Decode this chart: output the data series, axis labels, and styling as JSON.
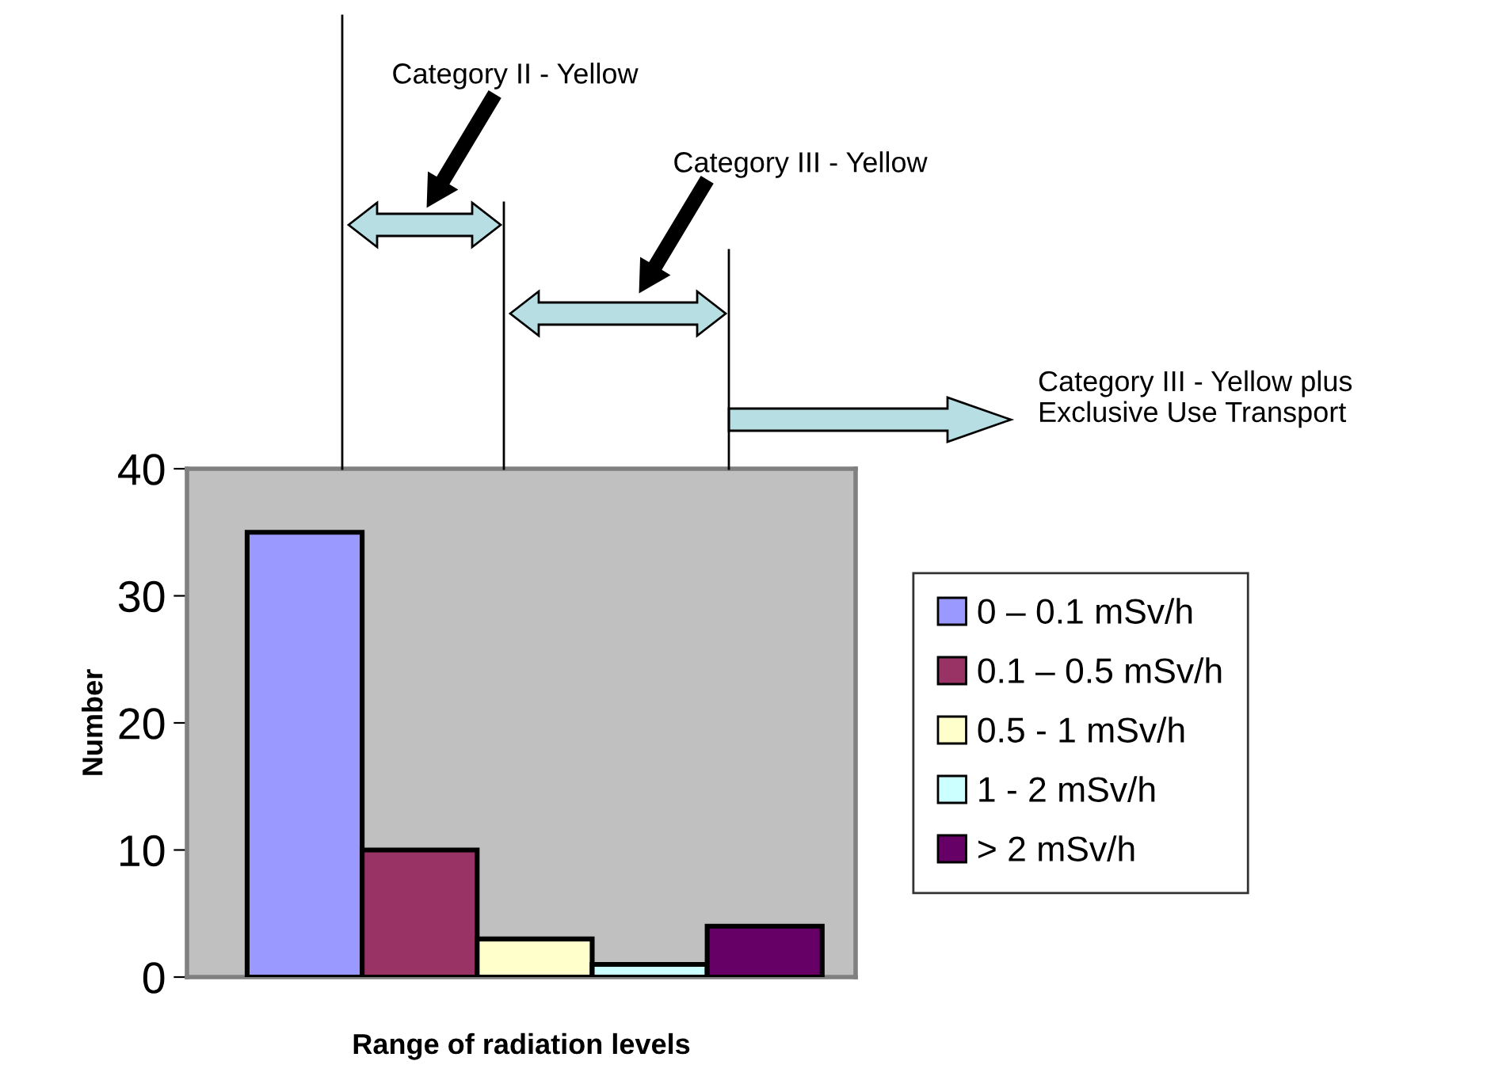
{
  "chart_data": {
    "type": "bar",
    "xlabel": "Range of radiation levels",
    "ylabel": "Number",
    "categories": [
      null
    ],
    "series": [
      {
        "name": "0 – 0.1 mSv/h",
        "color": "#9999ff",
        "values": [
          35
        ]
      },
      {
        "name": "0.1 – 0.5 mSv/h",
        "color": "#993366",
        "values": [
          10
        ]
      },
      {
        "name": "0.5 - 1 mSv/h",
        "color": "#ffffcc",
        "values": [
          3
        ]
      },
      {
        "name": "1 - 2 mSv/h",
        "color": "#ccffff",
        "values": [
          1
        ]
      },
      {
        "name": "> 2 mSv/h",
        "color": "#660066",
        "values": [
          4
        ]
      }
    ],
    "ylim": [
      0,
      40
    ],
    "yticks": [
      0,
      10,
      20,
      30,
      40
    ],
    "legend": "right",
    "annotations": [
      "Category II - Yellow",
      "Category III - Yellow",
      "Category III - Yellow plus\nExclusive Use Transport"
    ]
  }
}
